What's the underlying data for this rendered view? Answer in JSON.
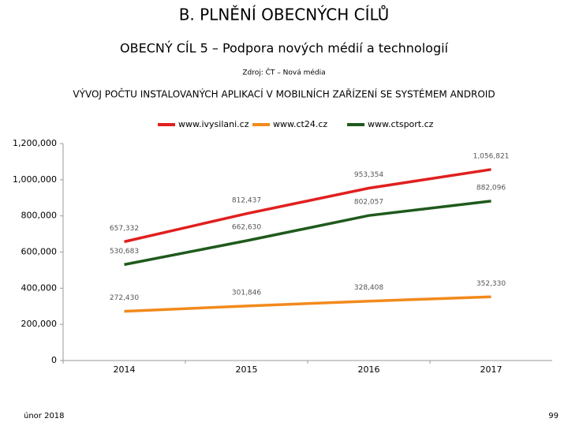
{
  "header": {
    "title": "B. PLNĚNÍ OBECNÝCH CÍLŮ",
    "subtitle": "OBECNÝ CÍL 5 – Podpora nových médií a technologií",
    "source": "Zdroj: ČT – Nová média"
  },
  "footer": {
    "date": "únor 2018",
    "page": "99"
  },
  "chart_data": {
    "type": "line",
    "title": "VÝVOJ POČTU INSTALOVANÝCH APLIKACÍ V MOBILNÍCH ZAŘÍZENÍ SE SYSTÉMEM ANDROID",
    "categories": [
      "2014",
      "2015",
      "2016",
      "2017"
    ],
    "series": [
      {
        "name": "www.ivysilani.cz",
        "color": "#e0201f",
        "values": [
          657332,
          812437,
          953354,
          1056821
        ],
        "value_labels": [
          "657,332",
          "812,437",
          "953,354",
          "1,056,821"
        ]
      },
      {
        "name": "www.ct24.cz",
        "color": "#f28a1c",
        "values": [
          272430,
          301846,
          328408,
          352330
        ],
        "value_labels": [
          "272,430",
          "301,846",
          "328,408",
          "352,330"
        ]
      },
      {
        "name": "www.ctsport.cz",
        "color": "#1f5a1c",
        "values": [
          530683,
          662630,
          802057,
          882096
        ],
        "value_labels": [
          "530,683",
          "662,630",
          "802,057",
          "882,096"
        ]
      }
    ],
    "ylim": [
      0,
      1200000
    ],
    "yticks": [
      0,
      {
        "value": 200000,
        "label": "200,000"
      },
      {
        "value": 400000,
        "label": "400,000"
      },
      {
        "value": 600000,
        "label": "600,000"
      },
      {
        "value": 800000,
        "label": "800,000"
      },
      {
        "value": 1000000,
        "label": "1,000,000"
      },
      {
        "value": 1200000,
        "label": "1,200,000"
      }
    ],
    "legend": "top"
  }
}
